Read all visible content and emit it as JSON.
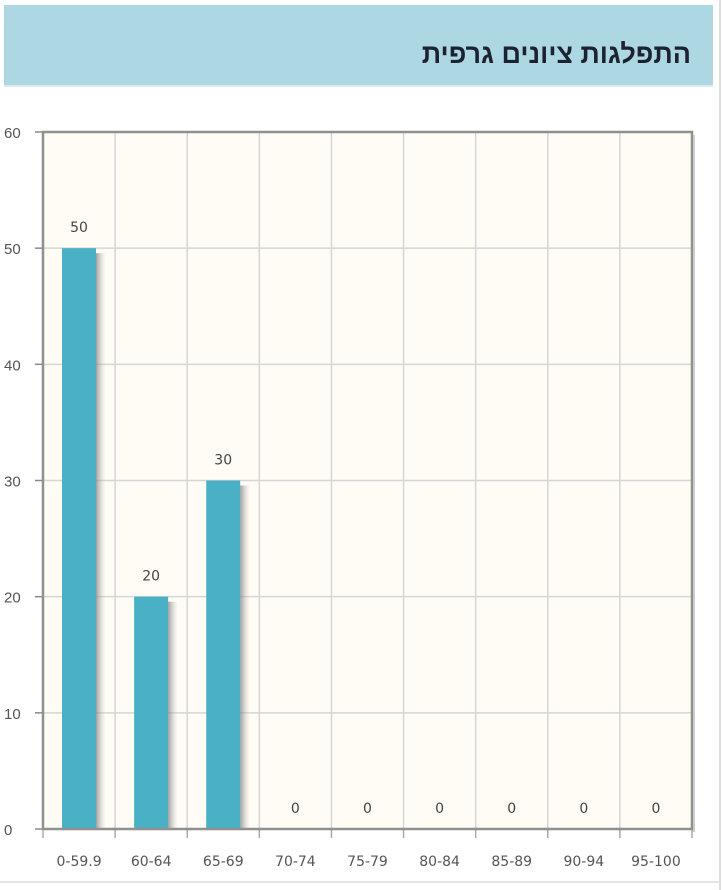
{
  "header": {
    "title": "התפלגות ציונים גרפית"
  },
  "chart_data": {
    "type": "bar",
    "title": "",
    "xlabel": "",
    "ylabel": "",
    "categories": [
      "0-59.9",
      "60-64",
      "65-69",
      "70-74",
      "75-79",
      "80-84",
      "85-89",
      "90-94",
      "95-100"
    ],
    "values": [
      50,
      20,
      30,
      0,
      0,
      0,
      0,
      0,
      0
    ],
    "data_labels": [
      "50",
      "20",
      "30",
      "0",
      "0",
      "0",
      "0",
      "0",
      "0"
    ],
    "ylim": [
      0,
      60
    ],
    "yticks": [
      "0",
      "10",
      "20",
      "30",
      "40",
      "50",
      "60"
    ],
    "grid": true,
    "colors": {
      "bar": "#4ab0c6",
      "plot_bg": "#fefcf4",
      "grid": "#d6d6d6",
      "axis": "#8a8a8a"
    }
  }
}
